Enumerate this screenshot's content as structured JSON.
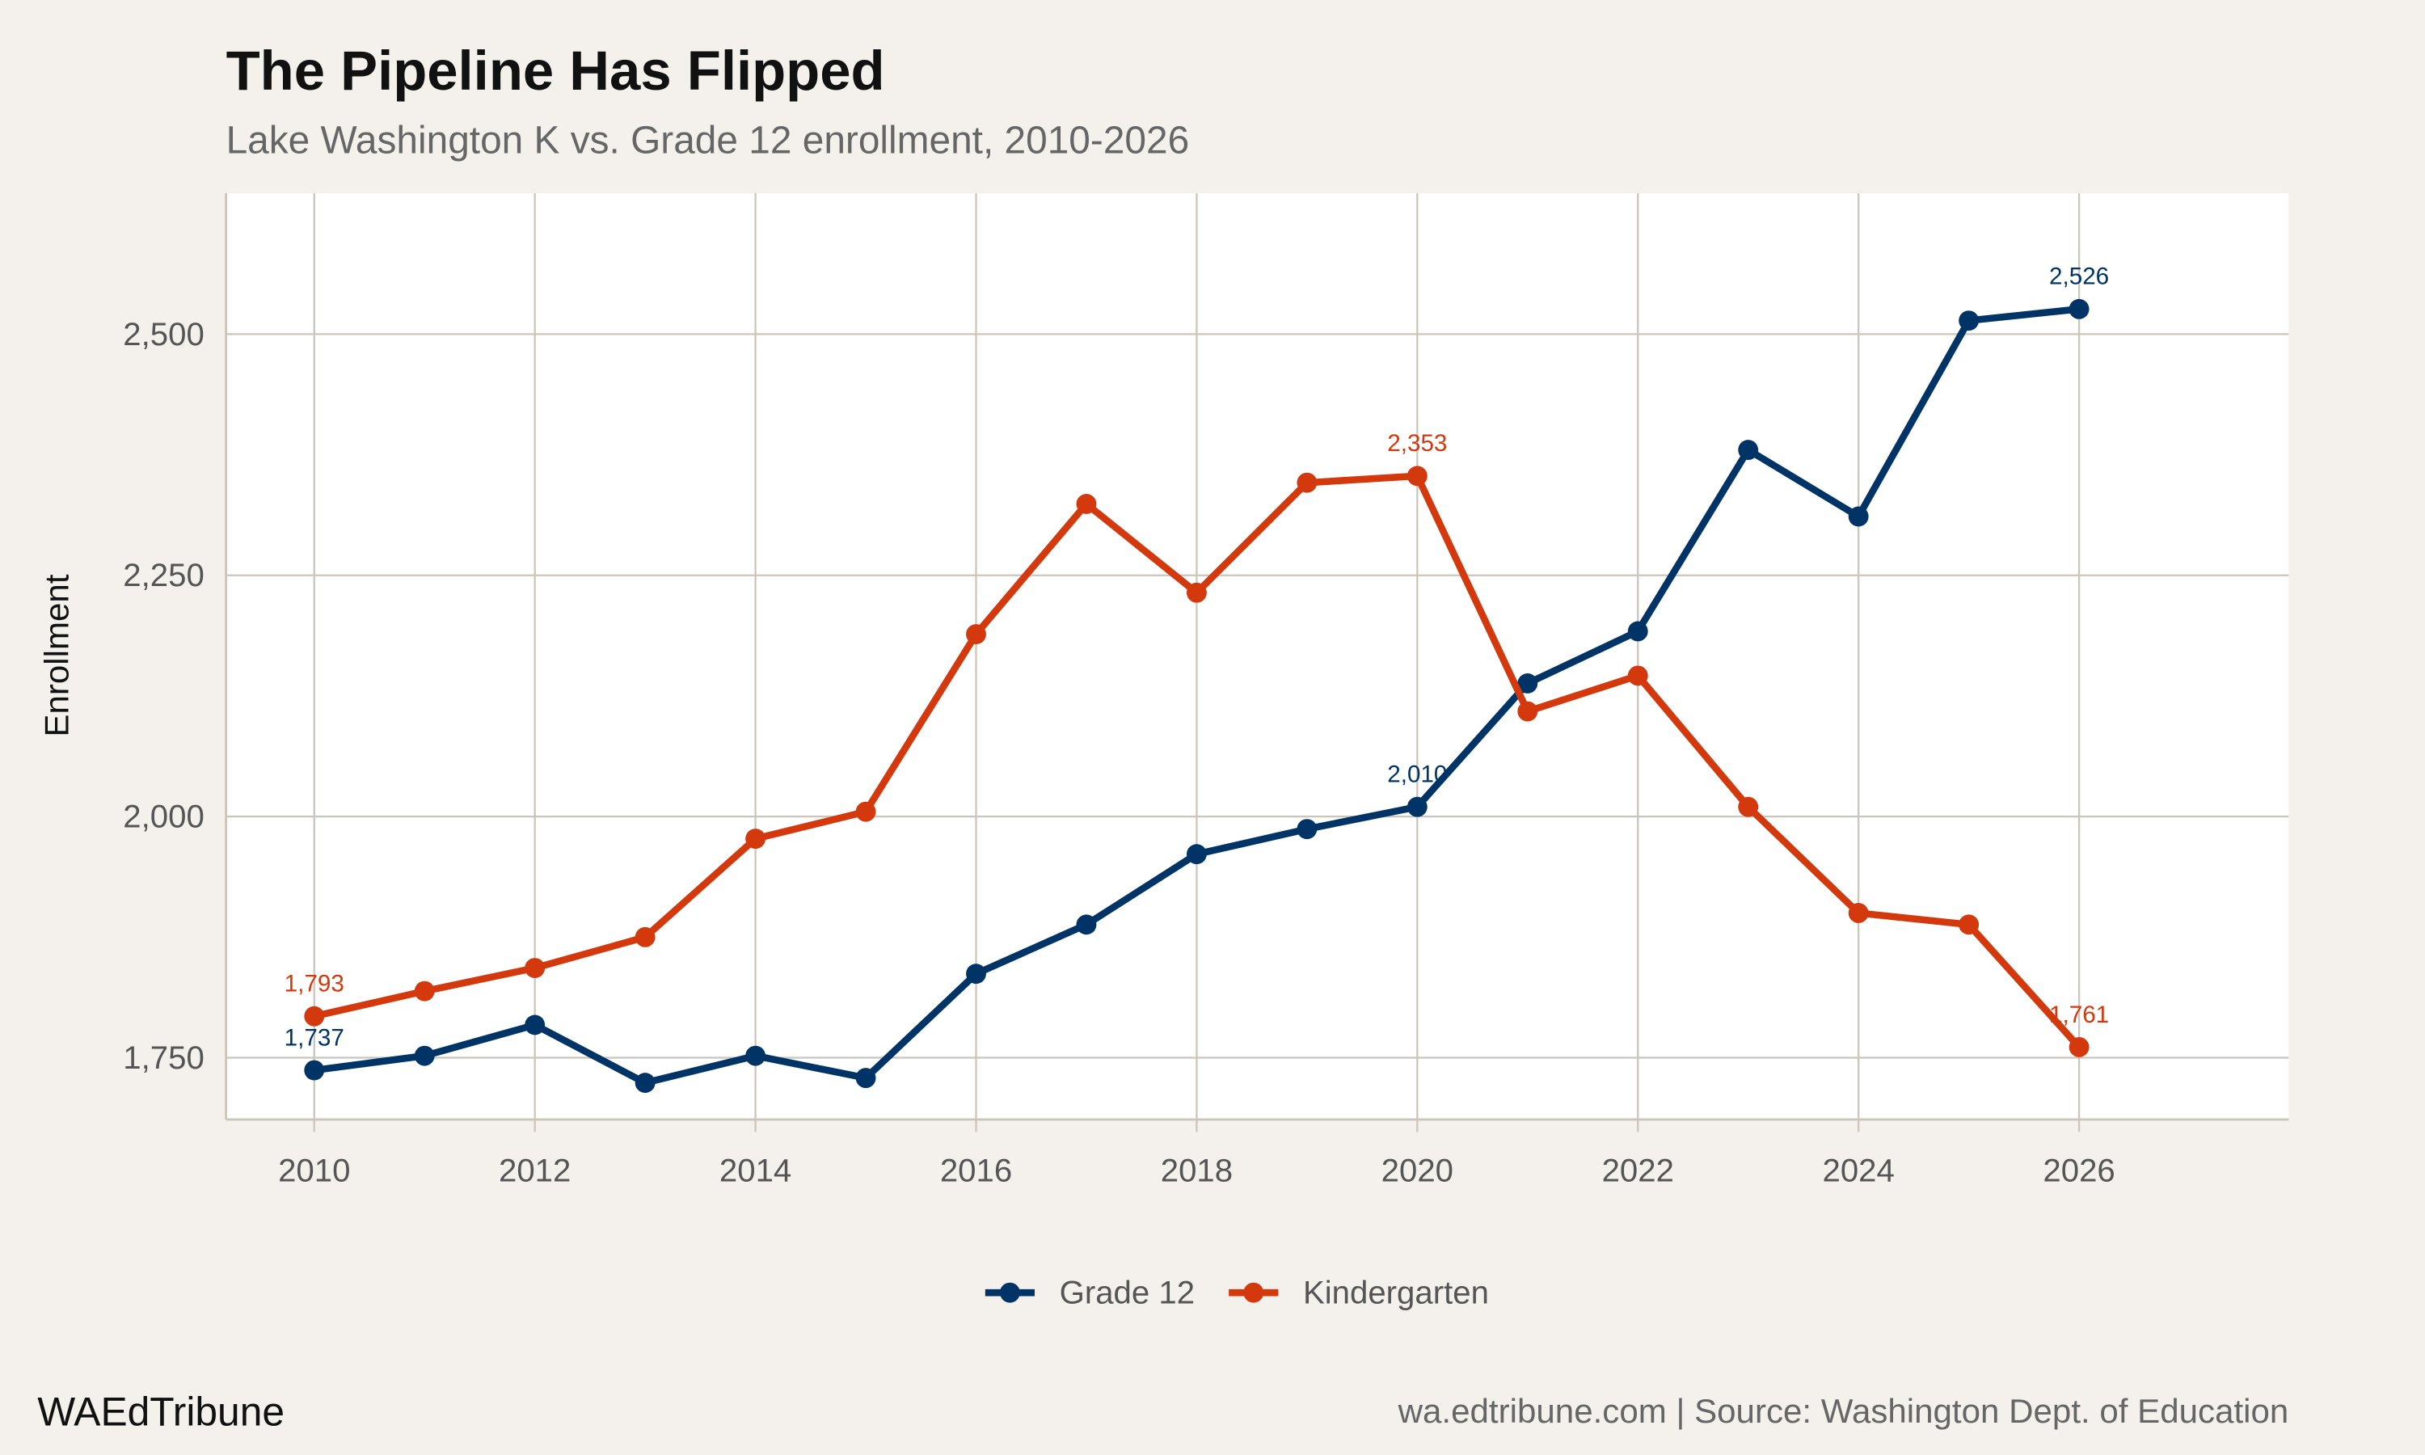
{
  "chart_data": {
    "type": "line",
    "title": "The Pipeline Has Flipped",
    "subtitle": "Lake Washington K vs. Grade 12 enrollment, 2010-2026",
    "xlabel": "",
    "ylabel": "Enrollment",
    "x": [
      2010,
      2011,
      2012,
      2013,
      2014,
      2015,
      2016,
      2017,
      2018,
      2019,
      2020,
      2021,
      2022,
      2023,
      2024,
      2025,
      2026
    ],
    "xlim": [
      2009.2,
      2027.9
    ],
    "ylim": [
      1686,
      2646
    ],
    "xticks": [
      2010,
      2012,
      2014,
      2016,
      2018,
      2020,
      2022,
      2024,
      2026
    ],
    "xtick_labels": [
      "2010",
      "2012",
      "2014",
      "2016",
      "2018",
      "2020",
      "2022",
      "2024",
      "2026"
    ],
    "yticks": [
      1750,
      2000,
      2250,
      2500
    ],
    "ytick_labels": [
      "1,750",
      "2,000",
      "2,250",
      "2,500"
    ],
    "grid": true,
    "legend_position": "bottom",
    "series": [
      {
        "name": "Grade 12",
        "color": "#003366",
        "values": [
          1737,
          1752,
          1784,
          1724,
          1752,
          1729,
          1837,
          1888,
          1961,
          1987,
          2010,
          2138,
          2192,
          2380,
          2311,
          2514,
          2526
        ],
        "labels": [
          {
            "x": 2010,
            "text": "1,737"
          },
          {
            "x": 2020,
            "text": "2,010"
          },
          {
            "x": 2026,
            "text": "2,526"
          }
        ]
      },
      {
        "name": "Kindergarten",
        "color": "#d4390e",
        "values": [
          1793,
          1819,
          1843,
          1875,
          1977,
          2005,
          2189,
          2324,
          2232,
          2346,
          2353,
          2109,
          2146,
          2010,
          1900,
          1888,
          1761
        ],
        "labels": [
          {
            "x": 2010,
            "text": "1,793"
          },
          {
            "x": 2020,
            "text": "2,353"
          },
          {
            "x": 2026,
            "text": "1,761"
          }
        ]
      }
    ]
  },
  "footer": {
    "brand": "WAEdTribune",
    "caption": "wa.edtribune.com | Source: Washington Dept. of Education"
  }
}
